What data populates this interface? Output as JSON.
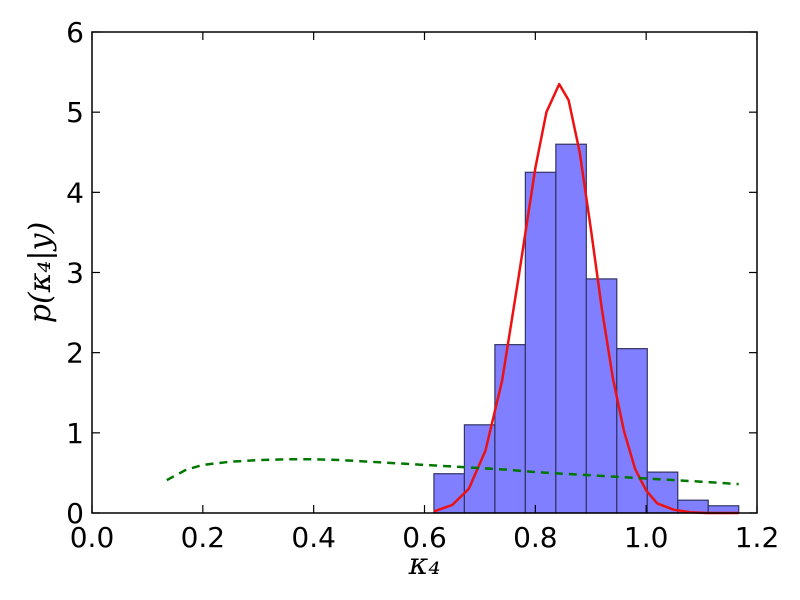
{
  "chart_data": {
    "type": "bar",
    "title": "",
    "xlabel": "κ₄",
    "ylabel": "p(κ₄|y)",
    "xlim": [
      0.0,
      1.2
    ],
    "ylim": [
      0,
      6
    ],
    "xticks": [
      "0.0",
      "0.2",
      "0.4",
      "0.6",
      "0.8",
      "1.0",
      "1.2"
    ],
    "yticks": [
      "0",
      "1",
      "2",
      "3",
      "4",
      "5",
      "6"
    ],
    "grid": false,
    "legend": "none",
    "histogram": {
      "color": "#7f7fff",
      "edge_color": "#333366",
      "bins": [
        {
          "x0": 0.617,
          "x1": 0.672,
          "height": 0.49
        },
        {
          "x0": 0.672,
          "x1": 0.727,
          "height": 1.1
        },
        {
          "x0": 0.727,
          "x1": 0.782,
          "height": 2.1
        },
        {
          "x0": 0.782,
          "x1": 0.837,
          "height": 4.25
        },
        {
          "x0": 0.837,
          "x1": 0.892,
          "height": 4.6
        },
        {
          "x0": 0.892,
          "x1": 0.947,
          "height": 2.92
        },
        {
          "x0": 0.947,
          "x1": 1.002,
          "height": 2.05
        },
        {
          "x0": 1.002,
          "x1": 1.057,
          "height": 0.51
        },
        {
          "x0": 1.057,
          "x1": 1.112,
          "height": 0.16
        },
        {
          "x0": 1.112,
          "x1": 1.167,
          "height": 0.09
        }
      ]
    },
    "series": [
      {
        "style": "solid",
        "color": "#ee1111",
        "x": [
          0.617,
          0.65,
          0.68,
          0.71,
          0.74,
          0.77,
          0.8,
          0.82,
          0.843,
          0.86,
          0.88,
          0.9,
          0.92,
          0.94,
          0.96,
          0.98,
          1.0,
          1.02,
          1.05,
          1.08,
          1.11,
          1.14,
          1.167
        ],
        "y": [
          0.02,
          0.1,
          0.3,
          0.78,
          1.65,
          2.95,
          4.3,
          5.0,
          5.35,
          5.15,
          4.5,
          3.55,
          2.55,
          1.68,
          1.02,
          0.55,
          0.28,
          0.12,
          0.04,
          0.01,
          0.0,
          0.0,
          0.0
        ]
      },
      {
        "style": "dashed",
        "color": "#007700",
        "x": [
          0.135,
          0.17,
          0.2,
          0.25,
          0.3,
          0.35,
          0.4,
          0.45,
          0.5,
          0.55,
          0.6,
          0.65,
          0.7,
          0.75,
          0.8,
          0.85,
          0.9,
          0.95,
          1.0,
          1.05,
          1.1,
          1.167
        ],
        "y": [
          0.41,
          0.54,
          0.6,
          0.64,
          0.66,
          0.67,
          0.67,
          0.66,
          0.64,
          0.62,
          0.6,
          0.58,
          0.56,
          0.54,
          0.51,
          0.49,
          0.47,
          0.45,
          0.43,
          0.41,
          0.39,
          0.36
        ]
      }
    ]
  }
}
